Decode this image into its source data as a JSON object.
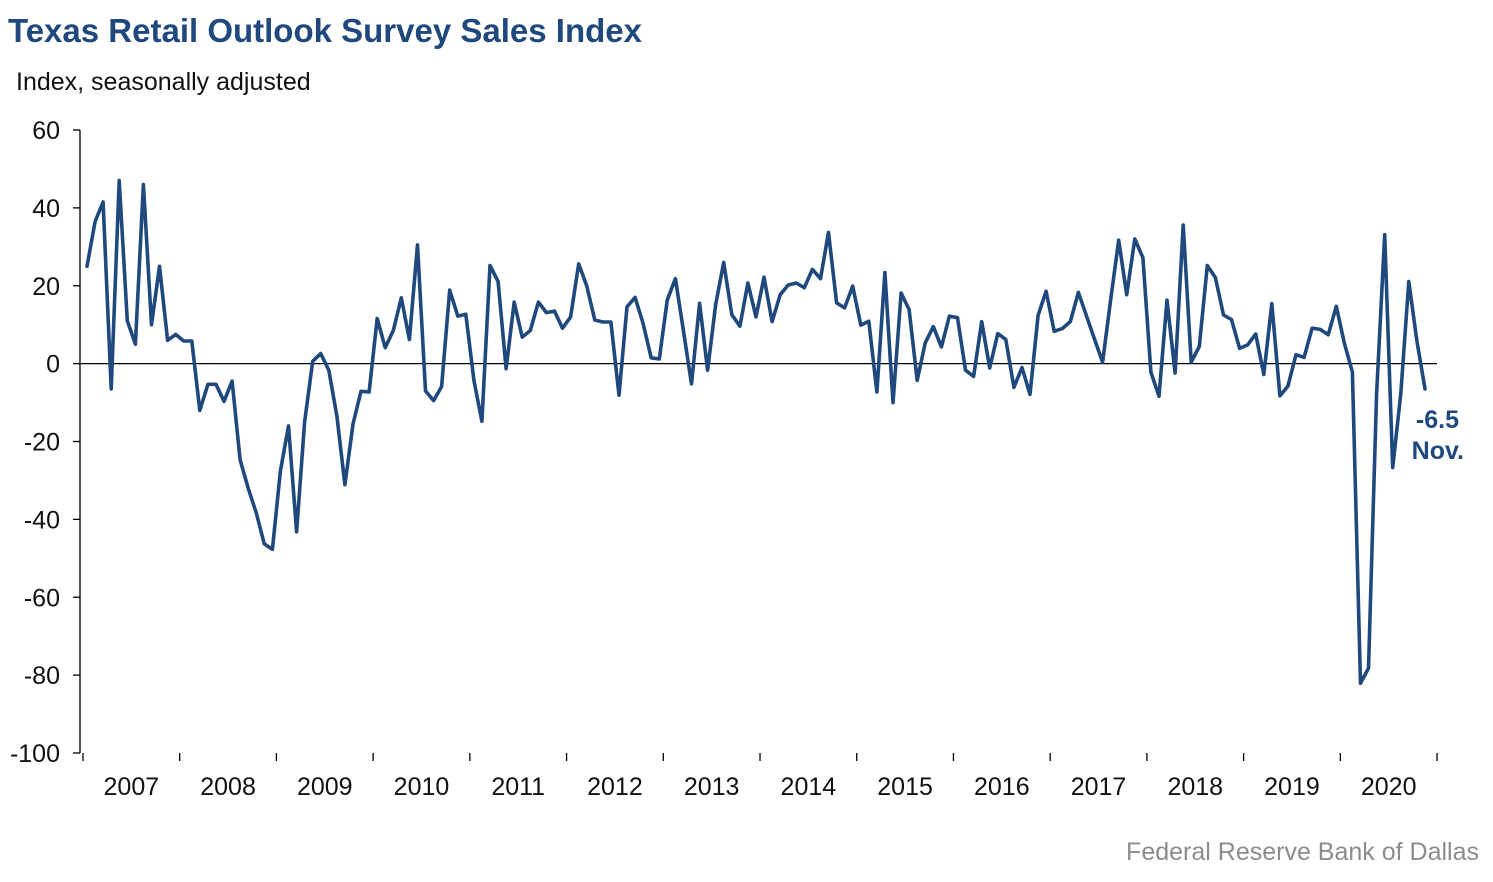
{
  "colors": {
    "title": "#1f497d",
    "series": "#1f497d",
    "source": "#8c8c8c"
  },
  "chart_data": {
    "type": "line",
    "title": "Texas Retail Outlook Survey Sales Index",
    "ylabel": "Index, seasonally adjusted",
    "source": "Federal Reserve Bank of Dallas",
    "ylim": [
      -100,
      60
    ],
    "yticks": [
      60,
      40,
      20,
      0,
      -20,
      -40,
      -60,
      -80,
      -100
    ],
    "xticks": [
      "2007",
      "2008",
      "2009",
      "2010",
      "2011",
      "2012",
      "2013",
      "2014",
      "2015",
      "2016",
      "2017",
      "2018",
      "2019",
      "2020"
    ],
    "grid": false,
    "legend": "none",
    "start": "2007-01",
    "end": "2020-11",
    "annotation": {
      "value": "-6.5",
      "label": "Nov."
    },
    "series": [
      {
        "values": [
          25,
          36.5,
          41.5,
          -6.5,
          47,
          11,
          5,
          46,
          10,
          25,
          6,
          7.5,
          5.8,
          5.8,
          -12,
          -5.3,
          -5.3,
          -9.7,
          -4.5,
          -24.7,
          -32,
          -38.4,
          -46.3,
          -47.7,
          -27.6,
          -16,
          -43.2,
          -15,
          0.6,
          2.6,
          -1.7,
          -13.5,
          -31.1,
          -15.5,
          -7.1,
          -7.3,
          11.6,
          4.1,
          8.5,
          16.9,
          6.2,
          30.5,
          -7,
          -9.5,
          -5.9,
          18.9,
          12.2,
          12.7,
          -4.3,
          -14.8,
          25.2,
          21.1,
          -1.3,
          15.8,
          6.8,
          8.5,
          15.8,
          13.1,
          13.5,
          9.1,
          12,
          25.6,
          20,
          11.2,
          10.7,
          10.7,
          -8.1,
          14.6,
          17,
          10.3,
          1.5,
          1.2,
          16.4,
          21.8,
          8.5,
          -5.2,
          15.5,
          -1.7,
          15.2,
          26,
          12.6,
          9.6,
          20.7,
          12,
          22.2,
          10.8,
          17.7,
          20.2,
          20.7,
          19.5,
          24.2,
          21.8,
          33.7,
          15.6,
          14.3,
          19.9,
          9.9,
          10.9,
          -7.3,
          23.4,
          -10,
          18.1,
          13.9,
          -4.3,
          5.3,
          9.5,
          4.3,
          12.2,
          11.8,
          -1.7,
          -3.3,
          10.8,
          -1.1,
          7.7,
          6.2,
          -6.1,
          -1,
          -7.9,
          12.4,
          18.6,
          8.3,
          9,
          10.8,
          18.3,
          12.3,
          6.3,
          0.4,
          16.3,
          31.7,
          17.7,
          32,
          27.2,
          -2.2,
          -8.4,
          16.3,
          -2.4,
          35.6,
          0.4,
          4.4,
          25.2,
          22.1,
          12.5,
          11.3,
          3.9,
          4.8,
          7.6,
          -2.8,
          15.4,
          -8.3,
          -5.8,
          2.3,
          1.6,
          9.1,
          8.8,
          7.4,
          14.7,
          5.2,
          -2.2,
          -82.1,
          -78.2,
          -7.7,
          33.1,
          -26.7,
          -7.7,
          21.1,
          5.8,
          -6.5
        ]
      }
    ]
  }
}
